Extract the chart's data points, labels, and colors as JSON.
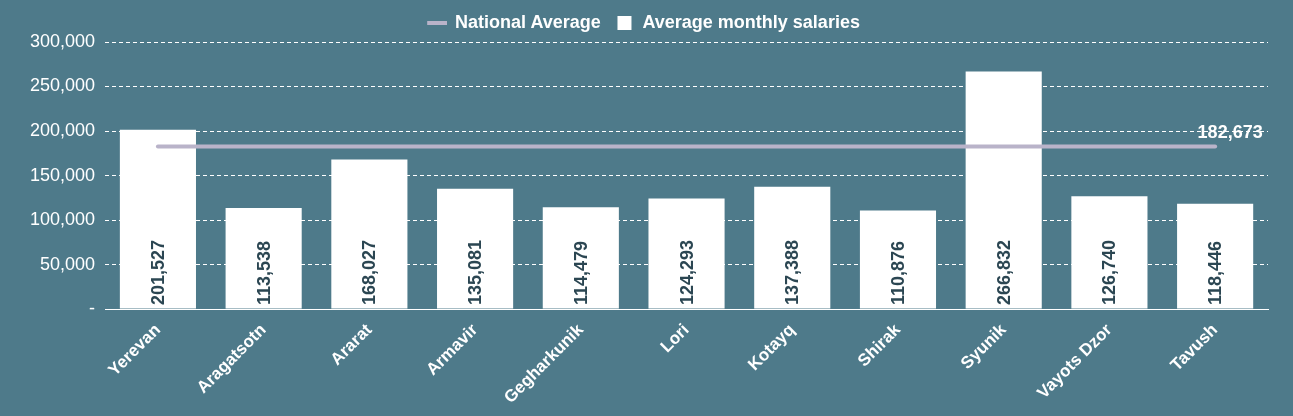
{
  "chart_data": {
    "type": "bar",
    "categories": [
      "Yerevan",
      "Aragatsotn",
      "Ararat",
      "Armavir",
      "Gegharkunik",
      "Lori",
      "Kotayq",
      "Shirak",
      "Syunik",
      "Vayots Dzor",
      "Tavush"
    ],
    "series": [
      {
        "name": "Average monthly salaries",
        "color": "#ffffff",
        "values": [
          201527,
          113538,
          168027,
          135081,
          114479,
          124293,
          137388,
          110876,
          266832,
          126740,
          118446
        ],
        "value_labels": [
          "201,527",
          "113,538",
          "168,027",
          "135,081",
          "114,479",
          "124,293",
          "137,388",
          "110,876",
          "266,832",
          "126,740",
          "118,446"
        ]
      },
      {
        "name": "National Average",
        "type": "line",
        "color": "#b9b3c9",
        "values": [
          182673,
          182673,
          182673,
          182673,
          182673,
          182673,
          182673,
          182673,
          182673,
          182673,
          182673
        ],
        "value_labels": [
          null,
          null,
          null,
          null,
          null,
          null,
          null,
          null,
          null,
          null,
          "182,673"
        ]
      }
    ],
    "ylim": [
      0,
      300000
    ],
    "yticks": [
      {
        "value": 0,
        "label": "-"
      },
      {
        "value": 50000,
        "label": "50,000"
      },
      {
        "value": 100000,
        "label": "100,000"
      },
      {
        "value": 150000,
        "label": "150,000"
      },
      {
        "value": 200000,
        "label": "200,000"
      },
      {
        "value": 250000,
        "label": "250,000"
      },
      {
        "value": 300000,
        "label": "300,000"
      }
    ],
    "grid": "y",
    "legend": "top"
  }
}
